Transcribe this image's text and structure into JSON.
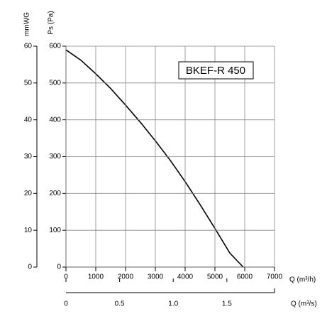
{
  "chart_data": {
    "type": "line",
    "title": "BKEF-R 450",
    "xlabel": "Q (m³/h)",
    "x2label": "Q (m³/s)",
    "ylabel": "Ps (Pa)",
    "y2label": "mmWG",
    "x": [
      0,
      500,
      1000,
      1500,
      2000,
      2500,
      3000,
      3500,
      4000,
      4500,
      5000,
      5500,
      5950
    ],
    "series": [
      {
        "name": "BKEF-R 450",
        "color": "#000000",
        "values": [
          590,
          562,
          525,
          485,
          440,
          393,
          343,
          290,
          232,
          170,
          105,
          38,
          0
        ]
      }
    ],
    "xlim": [
      0,
      7000
    ],
    "xticks": [
      0,
      1000,
      2000,
      3000,
      4000,
      5000,
      6000,
      7000
    ],
    "x2lim": [
      0,
      1.944
    ],
    "x2ticks": [
      0,
      0.5,
      {
        "value": 1,
        "label": "1.0"
      },
      1.5
    ],
    "ylim": [
      0,
      600
    ],
    "yticks": [
      0,
      100,
      200,
      300,
      400,
      500,
      600
    ],
    "y2lim": [
      0,
      60
    ],
    "y2ticks": [
      0,
      10,
      20,
      30,
      40,
      50,
      60
    ],
    "grid": true
  }
}
